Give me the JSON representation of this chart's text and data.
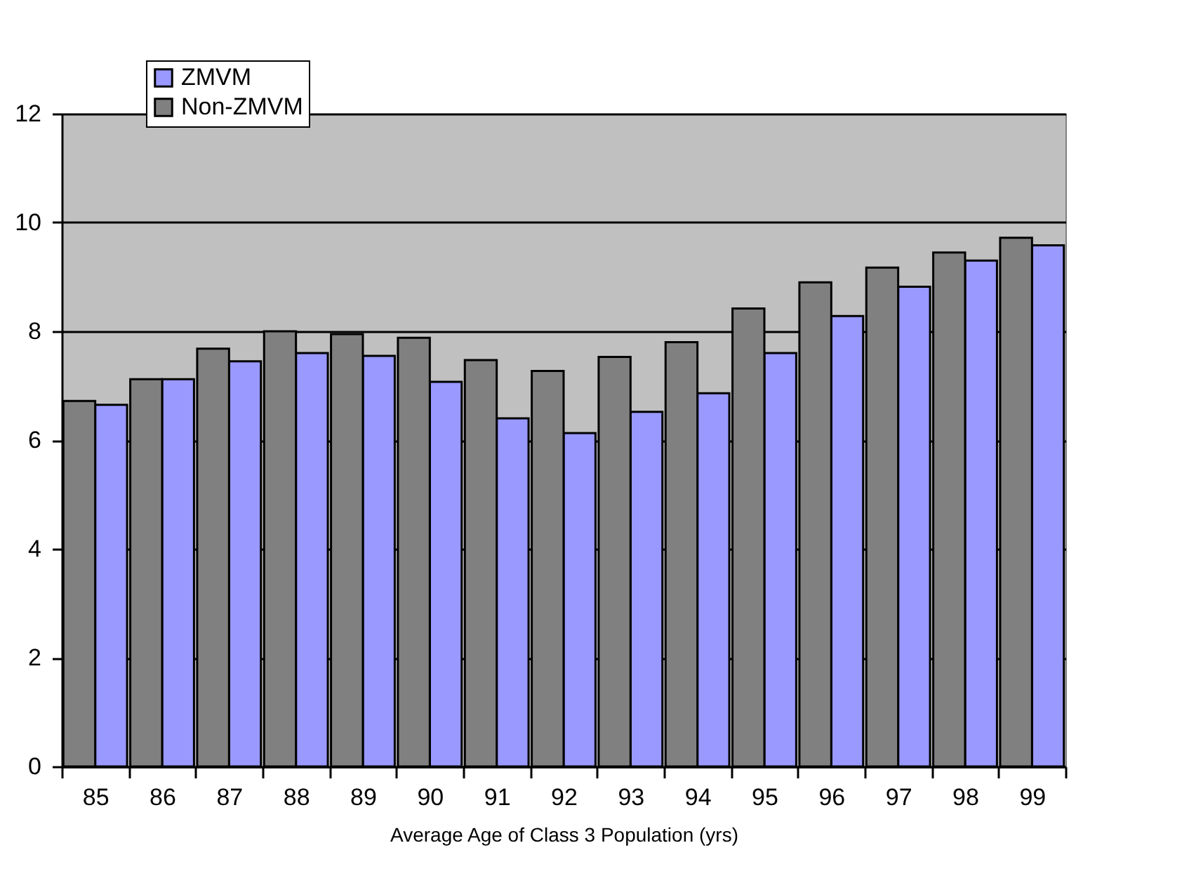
{
  "chart_data": {
    "type": "bar",
    "xlabel": "Average Age of Class 3 Population (yrs)",
    "categories": [
      "85",
      "86",
      "87",
      "88",
      "89",
      "90",
      "91",
      "92",
      "93",
      "94",
      "95",
      "96",
      "97",
      "98",
      "99"
    ],
    "series": [
      {
        "name": "ZMVM",
        "color": "#9999ff",
        "values": [
          6.65,
          7.12,
          7.45,
          7.6,
          7.55,
          7.07,
          6.4,
          6.13,
          6.52,
          6.86,
          7.6,
          8.28,
          8.82,
          9.3,
          9.58
        ]
      },
      {
        "name": "Non-ZMVM",
        "color": "#808080",
        "values": [
          6.72,
          7.12,
          7.68,
          8.0,
          7.95,
          7.88,
          7.47,
          7.27,
          7.53,
          7.8,
          8.42,
          8.9,
          9.17,
          9.45,
          9.72
        ]
      }
    ],
    "ylim": [
      0,
      12
    ],
    "yticks": [
      0,
      2,
      4,
      6,
      8,
      10,
      12
    ],
    "grid": "y",
    "legend": "top left"
  }
}
